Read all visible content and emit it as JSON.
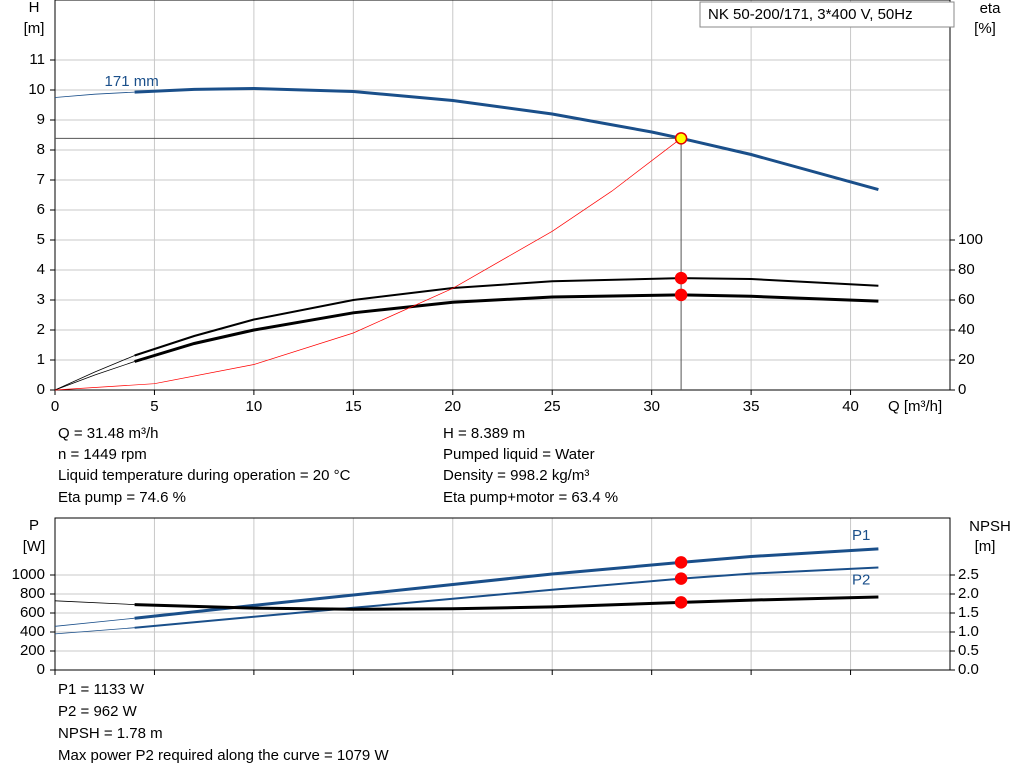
{
  "chart_data": [
    {
      "type": "line",
      "title": "NK 50-200/171, 3*400 V, 50Hz",
      "y_label": "H",
      "y_unit": "[m]",
      "y2_label": "eta",
      "y2_unit": "[%]",
      "x_label": "Q [m³/h]",
      "xlim": [
        0,
        45
      ],
      "xticks": [
        0,
        5,
        10,
        15,
        20,
        25,
        30,
        35,
        40
      ],
      "xtick_labels": true,
      "ylim": [
        0,
        13
      ],
      "yticks": [
        0,
        1,
        2,
        3,
        4,
        5,
        6,
        7,
        8,
        9,
        10,
        11
      ],
      "y2lim": [
        0,
        260
      ],
      "y2ticks": [
        0,
        20,
        40,
        60,
        80,
        100
      ],
      "grid": true,
      "series": [
        {
          "color": "#1a4f8a",
          "width": 0.8,
          "x": [
            0,
            2,
            4
          ],
          "values": [
            9.75,
            9.86,
            9.93
          ]
        },
        {
          "name": "171 mm",
          "label_position": "start",
          "color": "#1a4f8a",
          "width": 3,
          "x": [
            4,
            7,
            10,
            15,
            20,
            25,
            30,
            31.48,
            35,
            41.4
          ],
          "values": [
            9.93,
            10.02,
            10.05,
            9.95,
            9.65,
            9.2,
            8.6,
            8.389,
            7.85,
            6.68
          ]
        },
        {
          "color": "#000000",
          "width": 0.8,
          "axis": "y2",
          "x": [
            0,
            2,
            4
          ],
          "values": [
            0,
            12,
            23
          ]
        },
        {
          "color": "#000000",
          "width": 2,
          "axis": "y2",
          "x": [
            4,
            7,
            10,
            15,
            20,
            25,
            31.48,
            35,
            41.4
          ],
          "values": [
            23,
            36,
            47,
            60,
            68,
            72.5,
            74.6,
            74,
            69.5
          ]
        },
        {
          "color": "#000000",
          "width": 0.8,
          "axis": "y2",
          "x": [
            0,
            2,
            4
          ],
          "values": [
            0,
            10,
            19
          ]
        },
        {
          "color": "#000000",
          "width": 3,
          "axis": "y2",
          "x": [
            4,
            7,
            10,
            15,
            20,
            25,
            31.48,
            35,
            41.4
          ],
          "values": [
            19,
            31,
            40,
            51.5,
            58.5,
            62,
            63.4,
            62.5,
            59.3
          ]
        },
        {
          "color": "#ff0000",
          "width": 0.7,
          "x": [
            0,
            5,
            10,
            15,
            20,
            25,
            28,
            31.48
          ],
          "values": [
            0,
            0.21,
            0.85,
            1.9,
            3.39,
            5.29,
            6.63,
            8.389
          ]
        }
      ],
      "points": [
        {
          "x": 31.48,
          "y": 8.389,
          "color": "#ffff00",
          "crosshair": true
        },
        {
          "x": 31.48,
          "y": 74.6,
          "axis": "y2",
          "color": "#ff0000"
        },
        {
          "x": 31.48,
          "y": 63.4,
          "axis": "y2",
          "color": "#ff0000"
        }
      ]
    },
    {
      "type": "line",
      "y_label": "P",
      "y_unit": "[W]",
      "y2_label": "NPSH",
      "y2_unit": "[m]",
      "xlim": [
        0,
        45
      ],
      "xticks": [
        0,
        5,
        10,
        15,
        20,
        25,
        30,
        35,
        40
      ],
      "xtick_labels": false,
      "ylim": [
        0,
        1600
      ],
      "yticks": [
        0,
        200,
        400,
        600,
        800,
        1000
      ],
      "y2lim": [
        0,
        4
      ],
      "y2ticks": [
        {
          "value": 0,
          "label": "0.0"
        },
        0.5,
        {
          "value": 1,
          "label": "1.0"
        },
        1.5,
        {
          "value": 2,
          "label": "2.0"
        },
        2.5
      ],
      "grid": true,
      "series": [
        {
          "color": "#1a4f8a",
          "width": 0.8,
          "x": [
            0,
            4
          ],
          "values": [
            460,
            545
          ]
        },
        {
          "name": "P1",
          "label_position": "end-above",
          "color": "#1a4f8a",
          "width": 3,
          "x": [
            4,
            10,
            15,
            20,
            25,
            31.48,
            35,
            41.4
          ],
          "values": [
            545,
            680,
            790,
            900,
            1010,
            1133,
            1195,
            1275
          ]
        },
        {
          "color": "#1a4f8a",
          "width": 0.8,
          "x": [
            0,
            4
          ],
          "values": [
            380,
            445
          ]
        },
        {
          "name": "P2",
          "label_position": "end-below",
          "color": "#1a4f8a",
          "width": 2,
          "x": [
            4,
            10,
            15,
            20,
            25,
            31.48,
            35,
            41.4
          ],
          "values": [
            445,
            560,
            655,
            750,
            845,
            962,
            1015,
            1079
          ]
        },
        {
          "color": "#000000",
          "width": 0.8,
          "axis": "y2",
          "x": [
            0,
            4
          ],
          "values": [
            1.82,
            1.72
          ]
        },
        {
          "color": "#000000",
          "width": 3,
          "axis": "y2",
          "x": [
            4,
            10,
            15,
            20,
            25,
            31.48,
            35,
            41.4
          ],
          "values": [
            1.72,
            1.63,
            1.6,
            1.61,
            1.66,
            1.78,
            1.84,
            1.92
          ]
        }
      ],
      "points": [
        {
          "x": 31.48,
          "y": 1133,
          "color": "#ff0000"
        },
        {
          "x": 31.48,
          "y": 962,
          "color": "#ff0000"
        },
        {
          "x": 31.48,
          "y": 1.78,
          "axis": "y2",
          "color": "#ff0000"
        }
      ]
    }
  ],
  "info_top": {
    "left": [
      "Q = 31.48 m³/h",
      "n = 1449 rpm",
      "Liquid temperature during operation = 20 °C",
      "Eta pump = 74.6 %"
    ],
    "right": [
      "H = 8.389 m",
      "Pumped liquid = Water",
      "Density = 998.2 kg/m³",
      "Eta pump+motor = 63.4 %"
    ]
  },
  "info_bottom": [
    "P1 = 1133 W",
    "P2 = 962 W",
    "NPSH = 1.78 m",
    "Max power P2 required along the curve = 1079 W"
  ]
}
